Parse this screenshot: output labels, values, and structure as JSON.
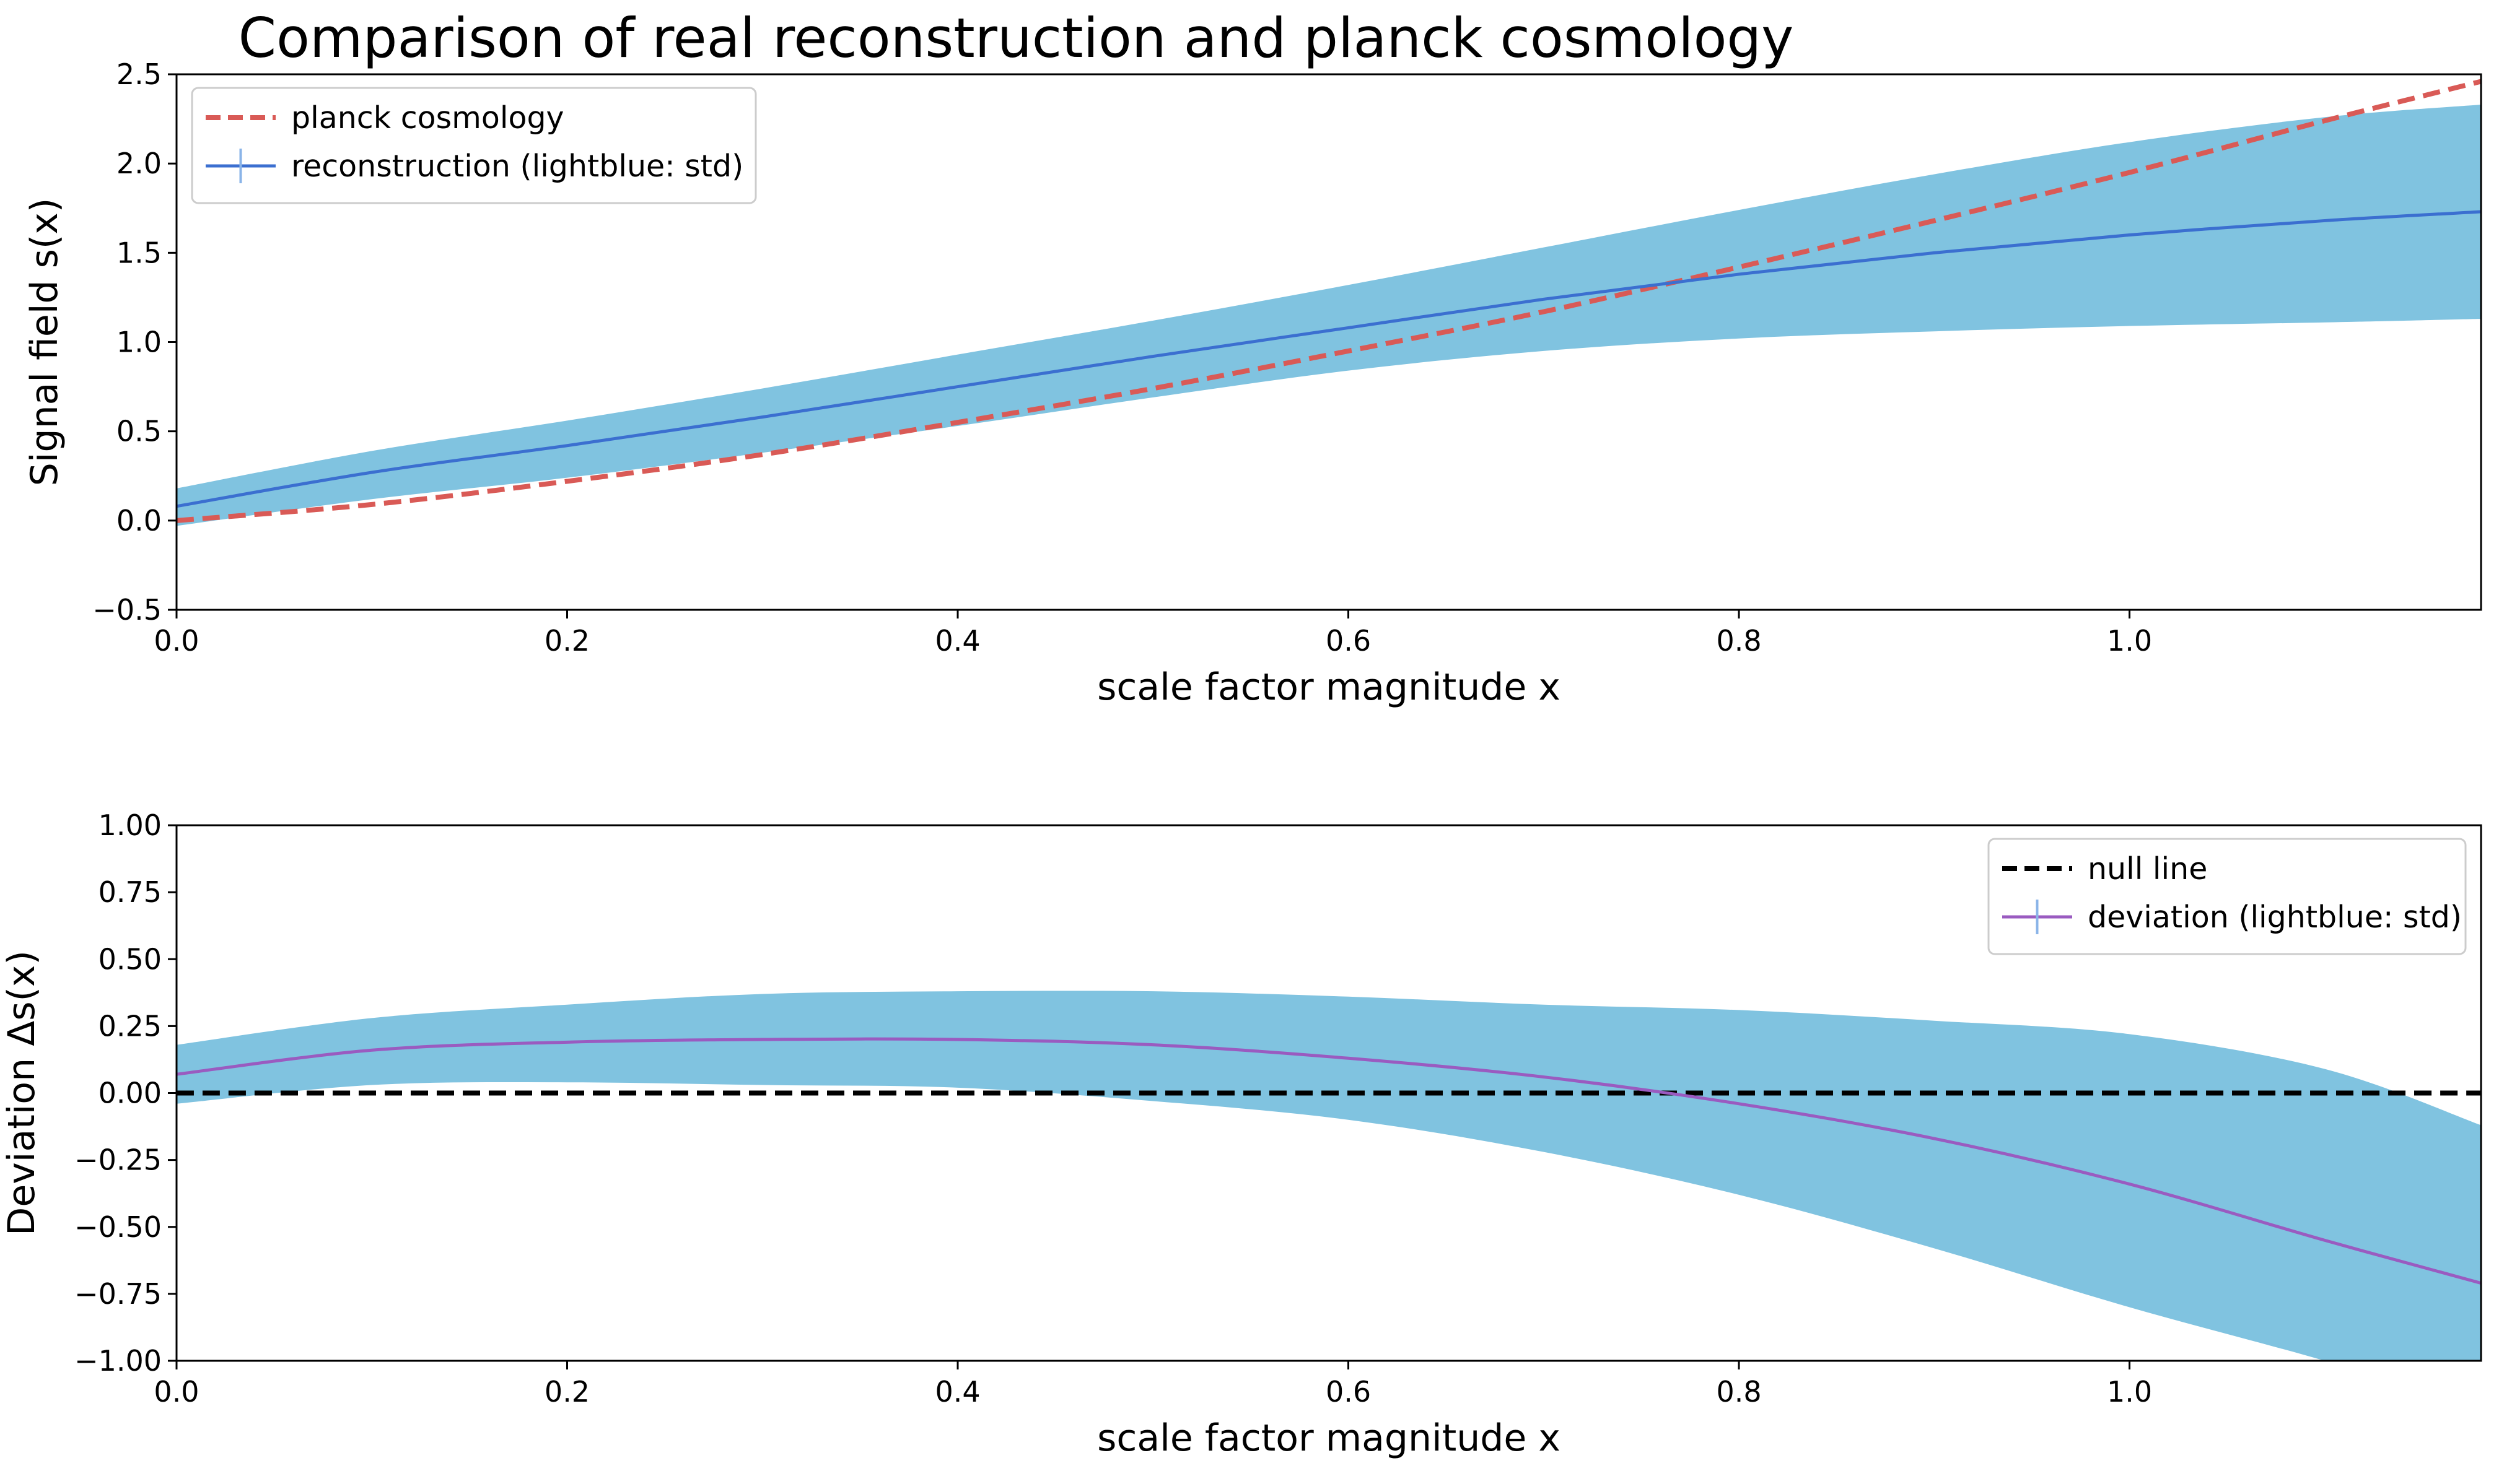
{
  "title": "Comparison of real reconstruction and planck cosmology",
  "colors": {
    "band": "#80c3e0",
    "reconstruction": "#3b6fd0",
    "planck": "#d95a56",
    "deviation": "#9a5bc0",
    "null": "#000000",
    "errbar": "#8ab4e8"
  },
  "chart_data": [
    {
      "type": "line",
      "xlabel": "scale factor magnitude x",
      "ylabel": "Signal field s(x)",
      "xlim": [
        0,
        1.18
      ],
      "ylim": [
        -0.5,
        2.5
      ],
      "xticks": [
        "0.0",
        "0.2",
        "0.4",
        "0.6",
        "0.8",
        "1.0"
      ],
      "yticks": [
        "−0.5",
        "0.0",
        "0.5",
        "1.0",
        "1.5",
        "2.0",
        "2.5"
      ],
      "legend_position": "upper-left",
      "x": [
        0.0,
        0.1,
        0.2,
        0.3,
        0.4,
        0.5,
        0.6,
        0.7,
        0.8,
        0.9,
        1.0,
        1.1,
        1.18
      ],
      "series": [
        {
          "name": "planck cosmology",
          "style": "dashed",
          "values": [
            0.0,
            0.09,
            0.22,
            0.37,
            0.55,
            0.74,
            0.95,
            1.17,
            1.42,
            1.68,
            1.95,
            2.24,
            2.46
          ]
        },
        {
          "name": "reconstruction (lightblue: std)",
          "style": "solid",
          "values": [
            0.08,
            0.27,
            0.42,
            0.58,
            0.75,
            0.92,
            1.08,
            1.24,
            1.38,
            1.5,
            1.6,
            1.68,
            1.73
          ],
          "lower": [
            -0.03,
            0.12,
            0.24,
            0.38,
            0.53,
            0.69,
            0.84,
            0.95,
            1.02,
            1.06,
            1.09,
            1.11,
            1.13
          ],
          "upper": [
            0.18,
            0.39,
            0.56,
            0.74,
            0.93,
            1.12,
            1.32,
            1.53,
            1.74,
            1.94,
            2.12,
            2.26,
            2.33
          ]
        }
      ]
    },
    {
      "type": "line",
      "xlabel": "scale factor magnitude x",
      "ylabel": "Deviation Δs(x)",
      "xlim": [
        0,
        1.18
      ],
      "ylim": [
        -1.0,
        1.0
      ],
      "xticks": [
        "0.0",
        "0.2",
        "0.4",
        "0.6",
        "0.8",
        "1.0"
      ],
      "yticks": [
        "−1.00",
        "−0.75",
        "−0.50",
        "−0.25",
        "0.00",
        "0.25",
        "0.50",
        "0.75",
        "1.00"
      ],
      "legend_position": "upper-right",
      "x": [
        0.0,
        0.1,
        0.2,
        0.3,
        0.4,
        0.5,
        0.6,
        0.7,
        0.8,
        0.9,
        1.0,
        1.1,
        1.18
      ],
      "series": [
        {
          "name": "null line",
          "style": "dashed",
          "values": [
            0,
            0,
            0,
            0,
            0,
            0,
            0,
            0,
            0,
            0,
            0,
            0,
            0
          ]
        },
        {
          "name": "deviation (lightblue: std)",
          "style": "solid",
          "values": [
            0.07,
            0.16,
            0.19,
            0.2,
            0.2,
            0.18,
            0.13,
            0.06,
            -0.04,
            -0.17,
            -0.34,
            -0.55,
            -0.71
          ],
          "lower": [
            -0.04,
            0.03,
            0.04,
            0.03,
            0.02,
            -0.03,
            -0.1,
            -0.22,
            -0.38,
            -0.58,
            -0.8,
            -1.0,
            -1.18
          ],
          "upper": [
            0.18,
            0.28,
            0.33,
            0.37,
            0.38,
            0.38,
            0.36,
            0.33,
            0.31,
            0.27,
            0.22,
            0.09,
            -0.12
          ]
        }
      ]
    }
  ]
}
